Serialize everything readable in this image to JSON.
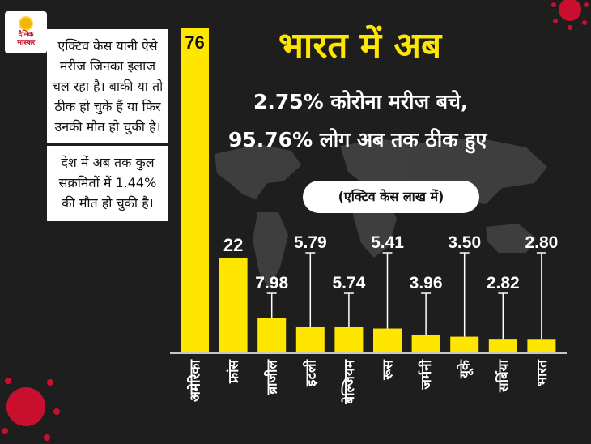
{
  "logo": {
    "text": "दैनिक\nभास्कर"
  },
  "side_notes": [
    "एक्टिव केस यानी ऐसे मरीज जिनका इलाज चल रहा है। बाकी या तो ठीक हो चुके हैं या फिर उनकी मौत हो चुकी है।",
    "देश में अब तक कुल संक्रमितों में 1.44% की मौत हो चुकी है।"
  ],
  "headline": "भारत में अब",
  "subhead_line1": "2.75% कोरोना मरीज बचे,",
  "subhead_line2": "95.76% लोग अब तक ठीक हुए",
  "unit_note": "(एक्टिव केस लाख में)",
  "colors": {
    "bar": "#ffe600",
    "background": "#1e1e1e",
    "accent_virus": "#c8102e"
  },
  "chart_data": {
    "type": "bar",
    "categories": [
      "अमेरिका",
      "फ्रांस",
      "ब्राजील",
      "इटली",
      "बेल्जियम",
      "रूस",
      "जर्मनी",
      "यूके",
      "सर्बिया",
      "भारत"
    ],
    "values": [
      76,
      22,
      7.98,
      5.79,
      5.74,
      5.41,
      3.96,
      3.5,
      2.82,
      2.8
    ],
    "value_labels": [
      "76",
      "22",
      "7.98",
      "5.79",
      "5.74",
      "5.41",
      "3.96",
      "3.50",
      "2.82",
      "2.80"
    ],
    "ylabel": "(एक्टिव केस लाख में)",
    "title": "",
    "grid": false,
    "legend": "none"
  }
}
